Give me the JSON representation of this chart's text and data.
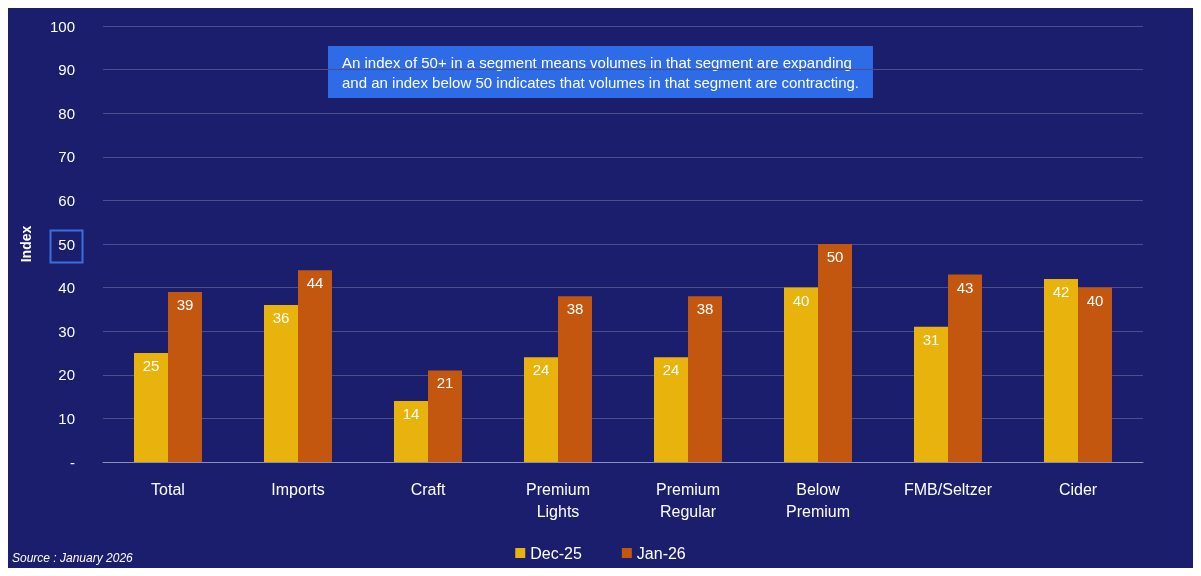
{
  "chart_data": {
    "type": "bar",
    "ylabel": "Index",
    "categories": [
      "Total",
      "Imports",
      "Craft",
      "Premium\nLights",
      "Premium\nRegular",
      "Below\nPremium",
      "FMB/Seltzer",
      "Cider"
    ],
    "series": [
      {
        "name": "Dec-25",
        "color": "#e8b30c",
        "values": [
          25,
          36,
          14,
          24,
          24,
          40,
          31,
          42
        ]
      },
      {
        "name": "Jan-26",
        "color": "#c4570f",
        "values": [
          39,
          44,
          21,
          38,
          38,
          50,
          43,
          40
        ]
      }
    ],
    "ylim": [
      0,
      100
    ],
    "yticks": [
      {
        "value": 0,
        "label": "-"
      },
      10,
      20,
      30,
      40,
      50,
      60,
      70,
      80,
      90,
      100
    ],
    "grid": "y",
    "legend": "bottom",
    "data_labels": true,
    "annotations": [
      "An index of 50+ in a segment means volumes in that segment are expanding\nand an index below 50 indicates that volumes in that segment are contracting.",
      "Source : January 2026"
    ]
  }
}
